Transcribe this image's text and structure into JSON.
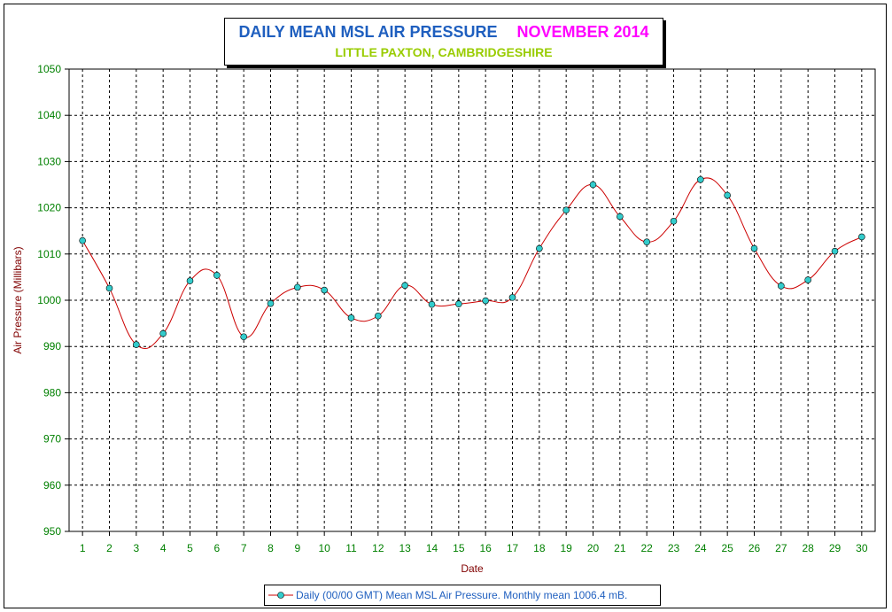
{
  "chart_data": {
    "type": "line",
    "title": "DAILY MEAN MSL AIR PRESSURE",
    "title_month": "NOVEMBER 2014",
    "subtitle": "LITTLE PAXTON, CAMBRIDGESHIRE",
    "xlabel": "Date",
    "ylabel": "Air Pressure (Millibars)",
    "ylim": [
      950,
      1050
    ],
    "yticks": [
      950,
      960,
      970,
      980,
      990,
      1000,
      1010,
      1020,
      1030,
      1040,
      1050
    ],
    "categories": [
      "1",
      "2",
      "3",
      "4",
      "5",
      "6",
      "7",
      "8",
      "9",
      "10",
      "11",
      "12",
      "13",
      "14",
      "15",
      "16",
      "17",
      "18",
      "19",
      "20",
      "21",
      "22",
      "23",
      "24",
      "25",
      "26",
      "27",
      "28",
      "29",
      "30"
    ],
    "grid": true,
    "legend_position": "bottom",
    "series": [
      {
        "name": "Daily (00/00 GMT) Mean MSL Air Pressure. Monthly mean 1006.4 mB.",
        "values": [
          1012.9,
          1002.6,
          990.4,
          992.8,
          1004.2,
          1005.4,
          992.1,
          999.3,
          1002.8,
          1002.2,
          996.2,
          996.6,
          1003.2,
          999.1,
          999.2,
          999.9,
          1000.6,
          1011.2,
          1019.5,
          1025.0,
          1018.1,
          1012.6,
          1017.1,
          1026.1,
          1022.7,
          1011.2,
          1003.1,
          1004.4,
          1010.6,
          1013.7
        ],
        "line_color": "#cc0000",
        "marker_color": "#33cccc"
      }
    ]
  }
}
